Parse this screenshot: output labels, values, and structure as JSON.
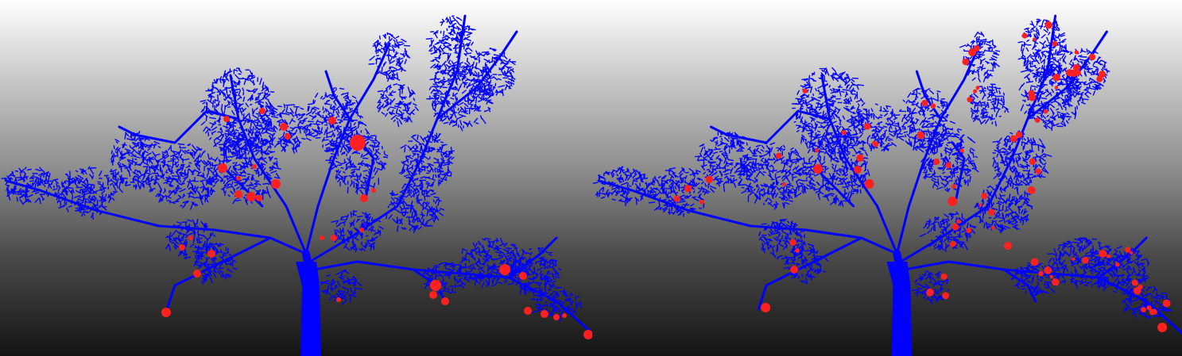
{
  "scene": {
    "background": {
      "top": "#ffffff",
      "bottom": "#141414"
    },
    "point_colors": {
      "tree": "#0000ff",
      "fruit": "#ff2020"
    }
  },
  "panels": [
    {
      "id": "left",
      "fruit_count_drawn": 34
    },
    {
      "id": "right",
      "fruit_count_drawn": 92
    }
  ]
}
